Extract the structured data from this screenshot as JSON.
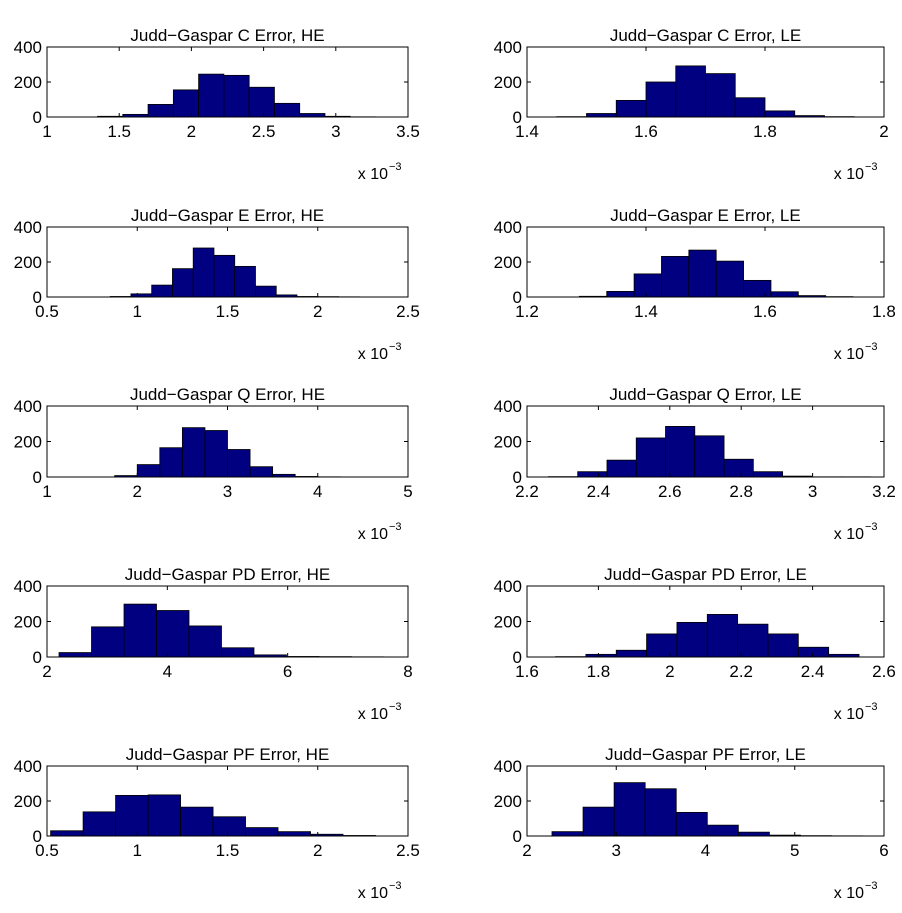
{
  "figure": {
    "background": "#ffffff",
    "bar_color": "#000080",
    "bar_edge": "#000000"
  },
  "chart_data": [
    {
      "type": "bar",
      "title": "Judd−Gaspar C Error, HE",
      "xlim": [
        1,
        3.5
      ],
      "ylim": [
        0,
        400
      ],
      "xticks": [
        "1",
        "1.5",
        "2",
        "2.5",
        "3",
        "3.5"
      ],
      "yticks": [
        "0",
        "200",
        "400"
      ],
      "x_multiplier": "x 10",
      "x_exponent": "−3",
      "bin_edges": [
        1.35,
        1.525,
        1.7,
        1.875,
        2.05,
        2.225,
        2.4,
        2.575,
        2.75,
        2.925,
        3.1,
        3.275
      ],
      "counts": [
        4,
        15,
        72,
        155,
        245,
        238,
        170,
        78,
        20,
        4,
        1
      ]
    },
    {
      "type": "bar",
      "title": "Judd−Gaspar C Error, LE",
      "xlim": [
        1.4,
        2
      ],
      "ylim": [
        0,
        400
      ],
      "xticks": [
        "1.4",
        "1.6",
        "1.8",
        "2"
      ],
      "yticks": [
        "0",
        "200",
        "400"
      ],
      "x_multiplier": "x 10",
      "x_exponent": "−3",
      "bin_edges": [
        1.45,
        1.5,
        1.55,
        1.6,
        1.65,
        1.7,
        1.75,
        1.8,
        1.85,
        1.9,
        1.95
      ],
      "counts": [
        2,
        20,
        95,
        200,
        292,
        248,
        110,
        35,
        8,
        2
      ]
    },
    {
      "type": "bar",
      "title": "Judd−Gaspar E Error, HE",
      "xlim": [
        0.5,
        2.5
      ],
      "ylim": [
        0,
        400
      ],
      "xticks": [
        "0.5",
        "1",
        "1.5",
        "2",
        "2.5"
      ],
      "yticks": [
        "0",
        "200",
        "400"
      ],
      "x_multiplier": "x 10",
      "x_exponent": "−3",
      "bin_edges": [
        0.85,
        0.965,
        1.08,
        1.195,
        1.31,
        1.425,
        1.54,
        1.655,
        1.77,
        1.885,
        2.0,
        2.115,
        2.23
      ],
      "counts": [
        3,
        18,
        68,
        162,
        280,
        238,
        175,
        62,
        12,
        3,
        2,
        1
      ]
    },
    {
      "type": "bar",
      "title": "Judd−Gaspar E Error, LE",
      "xlim": [
        1.2,
        1.8
      ],
      "ylim": [
        0,
        400
      ],
      "xticks": [
        "1.2",
        "1.4",
        "1.6",
        "1.8"
      ],
      "yticks": [
        "0",
        "200",
        "400"
      ],
      "x_multiplier": "x 10",
      "x_exponent": "−3",
      "bin_edges": [
        1.288,
        1.334,
        1.38,
        1.426,
        1.472,
        1.518,
        1.564,
        1.61,
        1.656,
        1.702,
        1.748
      ],
      "counts": [
        4,
        32,
        132,
        232,
        268,
        205,
        95,
        30,
        8,
        2
      ]
    },
    {
      "type": "bar",
      "title": "Judd−Gaspar Q Error, HE",
      "xlim": [
        1,
        5
      ],
      "ylim": [
        0,
        400
      ],
      "xticks": [
        "1",
        "2",
        "3",
        "4",
        "5"
      ],
      "yticks": [
        "0",
        "200",
        "400"
      ],
      "x_multiplier": "x 10",
      "x_exponent": "−3",
      "bin_edges": [
        1.75,
        2.0,
        2.25,
        2.5,
        2.75,
        3.0,
        3.25,
        3.5,
        3.75,
        4.0,
        4.25
      ],
      "counts": [
        8,
        70,
        165,
        278,
        262,
        155,
        58,
        15,
        3,
        1
      ]
    },
    {
      "type": "bar",
      "title": "Judd−Gaspar Q Error, LE",
      "xlim": [
        2.2,
        3.2
      ],
      "ylim": [
        0,
        400
      ],
      "xticks": [
        "2.2",
        "2.4",
        "2.6",
        "2.8",
        "3",
        "3.2"
      ],
      "yticks": [
        "0",
        "200",
        "400"
      ],
      "x_multiplier": "x 10",
      "x_exponent": "−3",
      "bin_edges": [
        2.26,
        2.342,
        2.424,
        2.506,
        2.588,
        2.67,
        2.752,
        2.834,
        2.916,
        2.998,
        3.08,
        3.162
      ],
      "counts": [
        2,
        30,
        95,
        220,
        285,
        232,
        100,
        30,
        5,
        1,
        1
      ]
    },
    {
      "type": "bar",
      "title": "Judd−Gaspar PD Error, HE",
      "xlim": [
        2,
        8
      ],
      "ylim": [
        0,
        400
      ],
      "xticks": [
        "2",
        "4",
        "6",
        "8"
      ],
      "yticks": [
        "0",
        "200",
        "400"
      ],
      "x_multiplier": "x 10",
      "x_exponent": "−3",
      "bin_edges": [
        2.2,
        2.74,
        3.28,
        3.82,
        4.36,
        4.9,
        5.44,
        5.98,
        6.52,
        7.06,
        7.6
      ],
      "counts": [
        25,
        170,
        298,
        262,
        175,
        52,
        12,
        3,
        2,
        1
      ]
    },
    {
      "type": "bar",
      "title": "Judd−Gaspar PD Error, LE",
      "xlim": [
        1.6,
        2.6
      ],
      "ylim": [
        0,
        400
      ],
      "xticks": [
        "1.6",
        "1.8",
        "2",
        "2.2",
        "2.4",
        "2.6"
      ],
      "yticks": [
        "0",
        "200",
        "400"
      ],
      "x_multiplier": "x 10",
      "x_exponent": "−3",
      "bin_edges": [
        1.68,
        1.765,
        1.85,
        1.935,
        2.02,
        2.105,
        2.19,
        2.275,
        2.36,
        2.445,
        2.53
      ],
      "counts": [
        2,
        15,
        38,
        130,
        195,
        240,
        185,
        130,
        55,
        15
      ]
    },
    {
      "type": "bar",
      "title": "Judd−Gaspar PF Error, HE",
      "xlim": [
        0.5,
        2.5
      ],
      "ylim": [
        0,
        400
      ],
      "xticks": [
        "0.5",
        "1",
        "1.5",
        "2",
        "2.5"
      ],
      "yticks": [
        "0",
        "200",
        "400"
      ],
      "x_multiplier": "x 10",
      "x_exponent": "−3",
      "bin_edges": [
        0.52,
        0.7,
        0.88,
        1.06,
        1.24,
        1.42,
        1.6,
        1.78,
        1.96,
        2.14,
        2.32
      ],
      "counts": [
        30,
        138,
        232,
        235,
        165,
        110,
        48,
        25,
        10,
        3
      ]
    },
    {
      "type": "bar",
      "title": "Judd−Gaspar PF Error, LE",
      "xlim": [
        2,
        6
      ],
      "ylim": [
        0,
        400
      ],
      "xticks": [
        "2",
        "3",
        "4",
        "5",
        "6"
      ],
      "yticks": [
        "0",
        "200",
        "400"
      ],
      "x_multiplier": "x 10",
      "x_exponent": "−3",
      "bin_edges": [
        2.28,
        2.628,
        2.976,
        3.324,
        3.672,
        4.02,
        4.368,
        4.716,
        5.064,
        5.412,
        5.76
      ],
      "counts": [
        25,
        165,
        305,
        270,
        135,
        62,
        22,
        5,
        2,
        1
      ]
    }
  ]
}
